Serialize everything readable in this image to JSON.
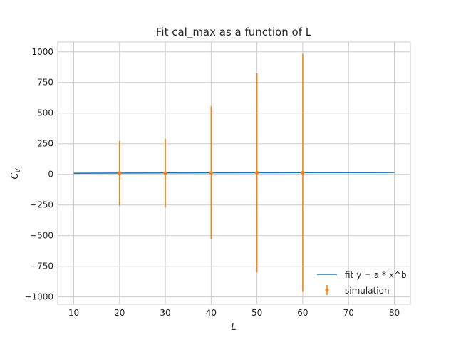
{
  "chart_data": {
    "type": "scatter",
    "title": "Fit cal_max as a function of L",
    "xlabel": "L",
    "ylabel_main": "C",
    "ylabel_sub": "V",
    "xlim": [
      6.5,
      83.5
    ],
    "ylim": [
      -1060,
      1080
    ],
    "x_ticks": [
      10,
      20,
      30,
      40,
      50,
      60,
      70,
      80
    ],
    "y_ticks": [
      -1000,
      -750,
      -500,
      -250,
      0,
      250,
      500,
      750,
      1000
    ],
    "y_tick_labels": [
      "−1000",
      "−750",
      "−500",
      "−250",
      "0",
      "250",
      "500",
      "750",
      "1000"
    ],
    "grid": true,
    "legend_position": "lower-right",
    "series": [
      {
        "name": "fit y = a * x^b",
        "kind": "line",
        "color": "#1f77b4",
        "x": [
          10,
          20,
          30,
          40,
          50,
          60,
          70,
          80
        ],
        "y": [
          9,
          10.5,
          11.5,
          12.5,
          13.3,
          14,
          14.6,
          15.2
        ]
      },
      {
        "name": "simulation",
        "kind": "errorbar",
        "color": "#ff7f0e",
        "x": [
          20,
          30,
          40,
          50,
          60
        ],
        "y": [
          10,
          11,
          12,
          13,
          14
        ],
        "yerr_low": [
          -255,
          -270,
          -530,
          -800,
          -960
        ],
        "yerr_high": [
          272,
          290,
          556,
          824,
          984
        ]
      }
    ]
  }
}
